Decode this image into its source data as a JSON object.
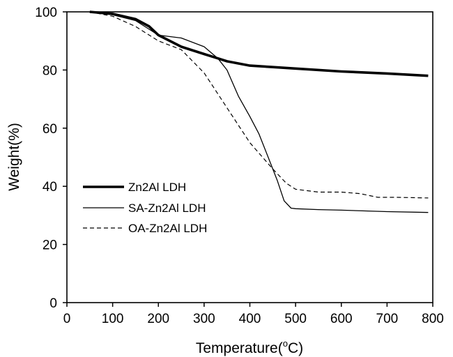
{
  "chart_data": {
    "type": "line",
    "xlabel": "Temperature(",
    "xlabel_sup": "o",
    "xlabel_unit": "C)",
    "ylabel": "Weight(%)",
    "xlim": [
      0,
      800
    ],
    "ylim": [
      0,
      100
    ],
    "xticks": [
      "0",
      "100",
      "200",
      "300",
      "400",
      "500",
      "600",
      "700",
      "800"
    ],
    "yticks": [
      "0",
      "20",
      "40",
      "60",
      "80",
      "100"
    ],
    "grid": false,
    "legend_position": "lower-left",
    "series": [
      {
        "name": "Zn2Al LDH",
        "style": "thick-solid",
        "color": "#000000",
        "x": [
          50,
          100,
          150,
          180,
          200,
          250,
          300,
          330,
          350,
          400,
          450,
          500,
          600,
          700,
          790
        ],
        "y": [
          100,
          99.3,
          97.5,
          95,
          92,
          88,
          85.5,
          84,
          83,
          81.5,
          81,
          80.5,
          79.5,
          78.8,
          78
        ]
      },
      {
        "name": "SA-Zn2Al LDH",
        "style": "thin-solid",
        "color": "#000000",
        "x": [
          50,
          100,
          150,
          180,
          200,
          250,
          300,
          330,
          350,
          375,
          400,
          420,
          440,
          460,
          475,
          490,
          500,
          550,
          600,
          700,
          790
        ],
        "y": [
          100,
          99,
          97,
          94,
          92,
          91,
          88,
          84,
          80,
          71,
          64,
          58,
          50,
          42,
          35,
          32.5,
          32.3,
          32,
          31.8,
          31.3,
          31
        ]
      },
      {
        "name": "OA-Zn2Al LDH",
        "style": "dashed",
        "color": "#000000",
        "x": [
          50,
          100,
          150,
          200,
          250,
          300,
          350,
          400,
          450,
          480,
          500,
          550,
          600,
          640,
          680,
          720,
          790
        ],
        "y": [
          100,
          98.5,
          95,
          90,
          87,
          79,
          67,
          55,
          46,
          41,
          39,
          38,
          38,
          37.5,
          36.2,
          36.2,
          36
        ]
      }
    ]
  }
}
